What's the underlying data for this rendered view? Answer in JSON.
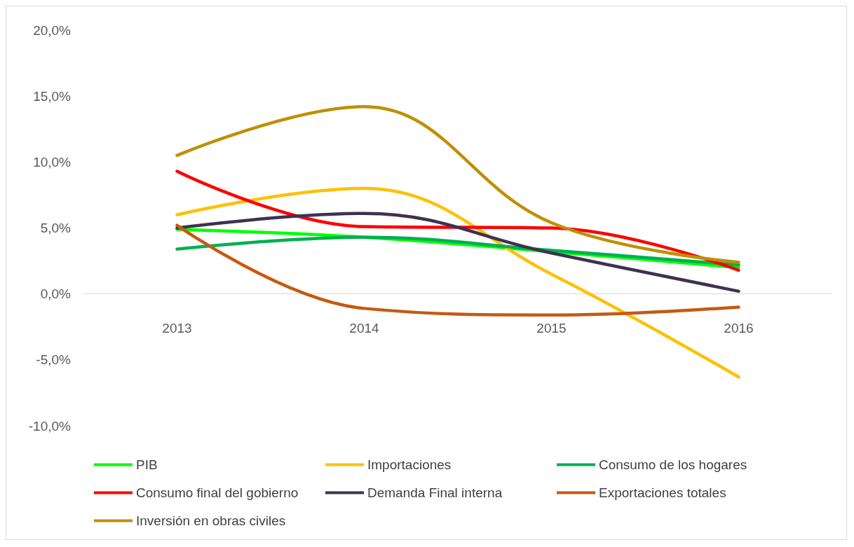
{
  "chart_data": {
    "type": "line",
    "categories": [
      "2013",
      "2014",
      "2015",
      "2016"
    ],
    "ylim": [
      -10,
      20
    ],
    "yticks": [
      {
        "value": -10,
        "label": "-10,0%"
      },
      {
        "value": -5,
        "label": "-5,0%"
      },
      {
        "value": 0,
        "label": "0,0%"
      },
      {
        "value": 5,
        "label": "5,0%"
      },
      {
        "value": 10,
        "label": "10,0%"
      },
      {
        "value": 15,
        "label": "15,0%"
      },
      {
        "value": 20,
        "label": "20,0%"
      }
    ],
    "grid": false,
    "legend": "bottom",
    "marker": "none",
    "line_style": "solid",
    "series": [
      {
        "name": "PIB",
        "color": "#00ff00",
        "values": [
          4.9,
          4.3,
          3.2,
          2.0
        ]
      },
      {
        "name": "Importaciones",
        "color": "#ffc000",
        "values": [
          6.0,
          8.0,
          1.5,
          -6.3
        ]
      },
      {
        "name": "Consumo de los hogares",
        "color": "#00b050",
        "values": [
          3.4,
          4.3,
          3.3,
          2.2
        ]
      },
      {
        "name": "Consumo final del gobierno",
        "color": "#ff0000",
        "values": [
          9.3,
          5.1,
          5.0,
          1.8
        ]
      },
      {
        "name": "Demanda Final interna",
        "color": "#403151",
        "values": [
          5.0,
          6.1,
          3.1,
          0.2
        ]
      },
      {
        "name": "Exportaciones totales",
        "color": "#c55a11",
        "values": [
          5.2,
          -1.1,
          -1.6,
          -1.0
        ]
      },
      {
        "name": "Inversión en obras civiles",
        "color": "#bf9000",
        "values": [
          10.5,
          14.2,
          5.4,
          2.4
        ]
      }
    ]
  }
}
